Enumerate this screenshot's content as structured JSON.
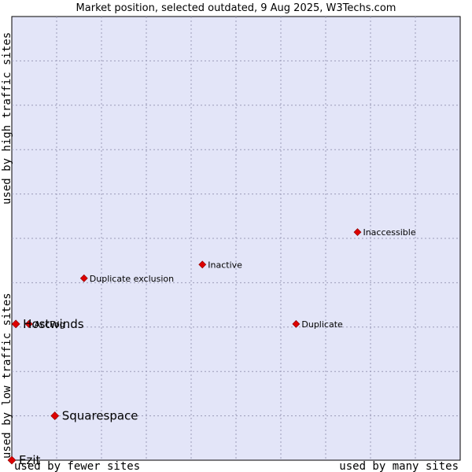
{
  "chart_data": {
    "type": "scatter",
    "title": "Market position, selected outdated, 9 Aug 2025, W3Techs.com",
    "xlabel_left": "used by fewer sites",
    "xlabel_right": "used by many sites",
    "ylabel_bottom": "used by low traffic sites",
    "ylabel_top": "used by high traffic sites",
    "xlim": [
      0,
      100
    ],
    "ylim": [
      0,
      100
    ],
    "grid": true,
    "legend": "none",
    "colors": {
      "plot_background": "#e3e5f8",
      "grid": "#9b9bb8",
      "point": "#dd0000"
    },
    "points": [
      {
        "label": "Inaccessible",
        "x": 77.1,
        "y": 51.4,
        "size": "small"
      },
      {
        "label": "Inactive",
        "x": 42.5,
        "y": 44.1,
        "size": "small"
      },
      {
        "label": "Duplicate exclusion",
        "x": 16.1,
        "y": 41.0,
        "size": "small"
      },
      {
        "label": "Duplicate",
        "x": 63.4,
        "y": 30.7,
        "size": "small"
      },
      {
        "label": "AccFog",
        "x": 3.8,
        "y": 30.7,
        "size": "small"
      },
      {
        "label": "Hostwinds",
        "x": 0.9,
        "y": 30.7,
        "size": "big"
      },
      {
        "label": "Squarespace",
        "x": 9.6,
        "y": 10.0,
        "size": "big"
      },
      {
        "label": "Ezit",
        "x": 0.0,
        "y": 0.0,
        "size": "big"
      }
    ]
  }
}
